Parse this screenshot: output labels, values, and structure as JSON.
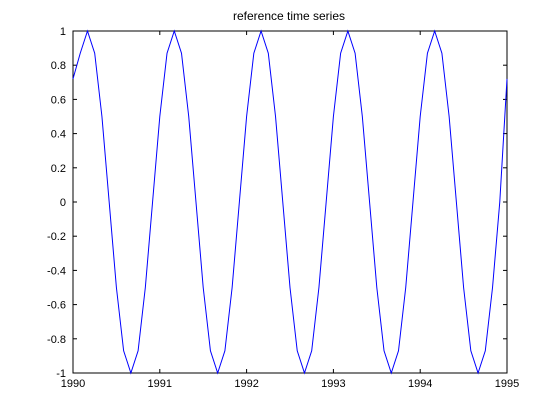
{
  "chart_data": {
    "type": "line",
    "title": "reference time series",
    "xlabel": "",
    "ylabel": "",
    "xlim": [
      1990,
      1995
    ],
    "ylim": [
      -1,
      1
    ],
    "xticks": [
      1990,
      1991,
      1992,
      1993,
      1994,
      1995
    ],
    "xtick_labels": [
      "1990",
      "1991",
      "1992",
      "1993",
      "1994",
      "1995"
    ],
    "yticks": [
      -1,
      -0.8,
      -0.6,
      -0.4,
      -0.2,
      0,
      0.2,
      0.4,
      0.6,
      0.8,
      1
    ],
    "ytick_labels": [
      "-1",
      "-0.8",
      "-0.6",
      "-0.4",
      "-0.2",
      "0",
      "0.2",
      "0.4",
      "0.6",
      "0.8",
      "1"
    ],
    "grid": false,
    "line_color": "#0000ff",
    "series": [
      {
        "x": [
          1990,
          1990.0833,
          1990.1667,
          1990.25,
          1990.3333,
          1990.4167,
          1990.5,
          1990.5833,
          1990.6667,
          1990.75,
          1990.8333,
          1990.9167,
          1991,
          1991.0833,
          1991.1667,
          1991.25,
          1991.3333,
          1991.4167,
          1991.5,
          1991.5833,
          1991.6667,
          1991.75,
          1991.8333,
          1991.9167,
          1992,
          1992.0833,
          1992.1667,
          1992.25,
          1992.3333,
          1992.4167,
          1992.5,
          1992.5833,
          1992.6667,
          1992.75,
          1992.8333,
          1992.9167,
          1993,
          1993.0833,
          1993.1667,
          1993.25,
          1993.3333,
          1993.4167,
          1993.5,
          1993.5833,
          1993.6667,
          1993.75,
          1993.8333,
          1993.9167,
          1994,
          1994.0833,
          1994.1667,
          1994.25,
          1994.3333,
          1994.4167,
          1994.5,
          1994.5833,
          1994.6667,
          1994.75,
          1994.8333,
          1994.9167,
          1995
        ],
        "y": [
          0.72,
          0.87,
          1.0,
          0.87,
          0.5,
          0.0,
          -0.5,
          -0.87,
          -1.0,
          -0.87,
          -0.5,
          0.0,
          0.5,
          0.87,
          1.0,
          0.87,
          0.5,
          0.0,
          -0.5,
          -0.87,
          -1.0,
          -0.87,
          -0.5,
          0.0,
          0.5,
          0.87,
          1.0,
          0.87,
          0.5,
          0.0,
          -0.5,
          -0.87,
          -1.0,
          -0.87,
          -0.5,
          0.0,
          0.5,
          0.87,
          1.0,
          0.87,
          0.5,
          0.0,
          -0.5,
          -0.87,
          -1.0,
          -0.87,
          -0.5,
          0.0,
          0.5,
          0.87,
          1.0,
          0.87,
          0.5,
          0.0,
          -0.5,
          -0.87,
          -1.0,
          -0.87,
          -0.5,
          0.0,
          0.72
        ]
      }
    ]
  }
}
